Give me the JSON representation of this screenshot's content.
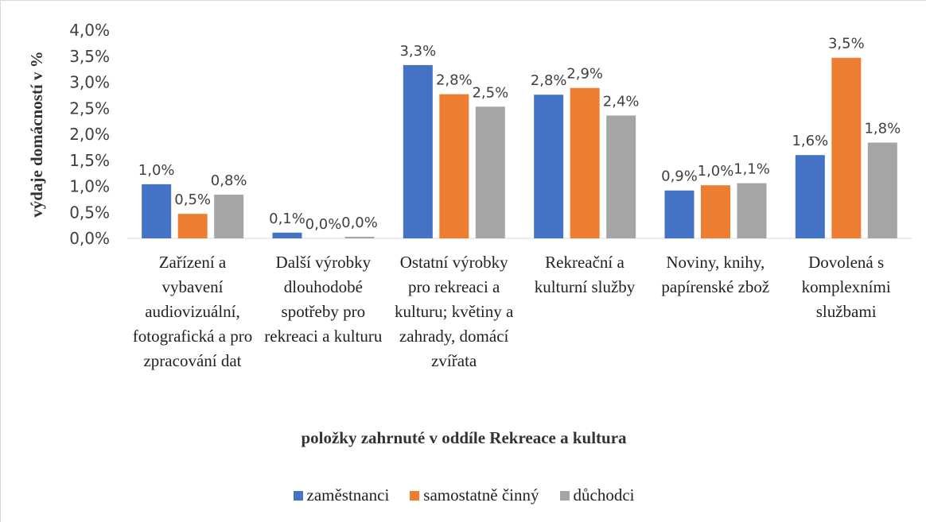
{
  "chart_data": {
    "type": "bar",
    "y_label": "výdaje domácností v %",
    "x_label": "položky zahrnuté v oddíle Rekreace a kultura",
    "categories": [
      "Zařízení a vybavení audiovizuální, fotografická a pro zpracování dat",
      "Další výrobky dlouhodobé spotřeby pro rekreaci a kulturu",
      "Ostatní výrobky pro rekreaci a kulturu; květiny a zahrady, domácí zvířata",
      "Rekreační a kulturní služby",
      "Noviny, knihy, papírenské zbož",
      "Dovolená s komplexními službami"
    ],
    "series": [
      {
        "name": "zaměstnanci",
        "color": "#4472c4",
        "values": [
          1.04,
          0.11,
          3.33,
          2.76,
          0.92,
          1.6
        ],
        "value_labels": [
          "1,0%",
          "0,1%",
          "3,3%",
          "2,8%",
          "0,9%",
          "1,6%"
        ]
      },
      {
        "name": "samostatně činný",
        "color": "#ed7d31",
        "values": [
          0.47,
          0.0,
          2.77,
          2.89,
          1.02,
          3.47
        ],
        "value_labels": [
          "0,5%",
          "0,0%",
          "2,8%",
          "2,9%",
          "1,0%",
          "3,5%"
        ]
      },
      {
        "name": "důchodci",
        "color": "#a5a5a5",
        "values": [
          0.84,
          0.03,
          2.53,
          2.36,
          1.06,
          1.84
        ],
        "value_labels": [
          "0,8%",
          "0,0%",
          "2,5%",
          "2,4%",
          "1,1%",
          "1,8%"
        ]
      }
    ],
    "ylim": [
      0,
      4
    ],
    "yticks": [
      {
        "value": 0,
        "label": "0,0%"
      },
      {
        "value": 0.5,
        "label": "0,5%"
      },
      {
        "value": 1,
        "label": "1,0%"
      },
      {
        "value": 1.5,
        "label": "1,5%"
      },
      {
        "value": 2,
        "label": "2,0%"
      },
      {
        "value": 2.5,
        "label": "2,5%"
      },
      {
        "value": 3,
        "label": "3,0%"
      },
      {
        "value": 3.5,
        "label": "3,5%"
      },
      {
        "value": 4,
        "label": "4,0%"
      }
    ],
    "grid": false,
    "legend": "bottom"
  }
}
